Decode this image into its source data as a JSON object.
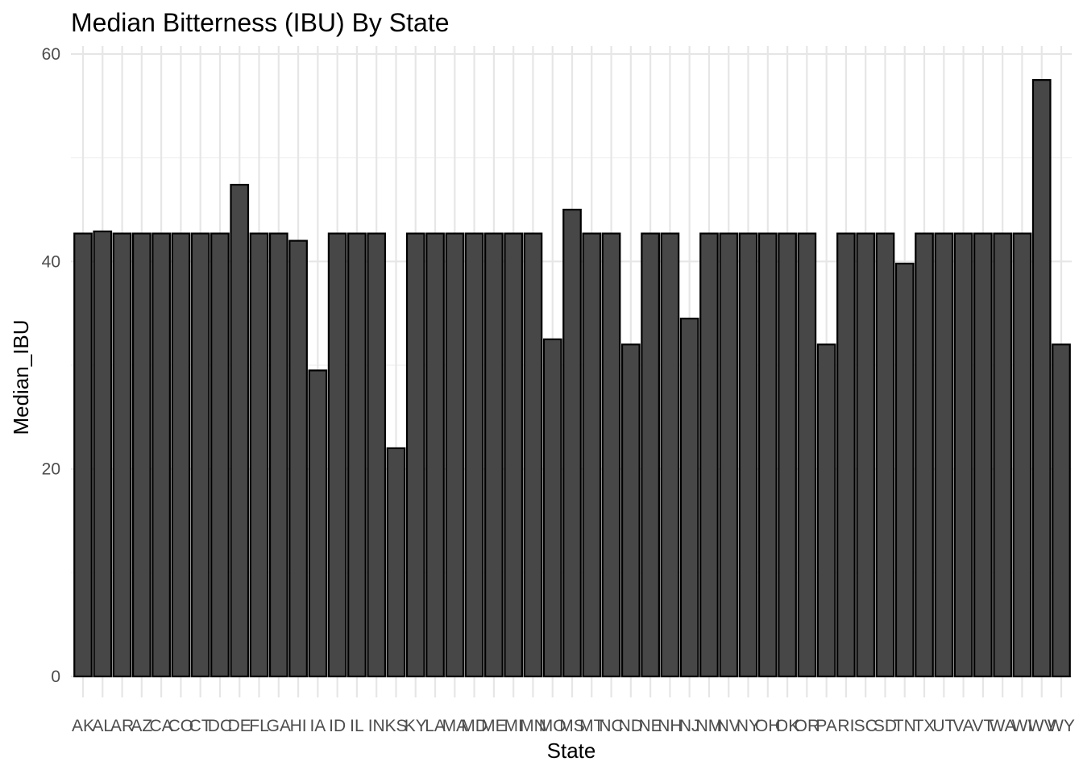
{
  "chart_data": {
    "type": "bar",
    "title": "Median Bitterness (IBU) By State",
    "xlabel": "State",
    "ylabel": "Median_IBU",
    "ylim": [
      0,
      60
    ],
    "yticks": [
      0,
      20,
      40,
      60
    ],
    "grid": true,
    "legend": "none",
    "colors": {
      "bar_fill": "#474747",
      "bar_stroke": "#000000",
      "grid": "#e6e6e6"
    },
    "categories": [
      "AK",
      "AL",
      "AR",
      "AZ",
      "CA",
      "CO",
      "CT",
      "DC",
      "DE",
      "FL",
      "GA",
      "HI",
      "IA",
      "ID",
      "IL",
      "IN",
      "KS",
      "KY",
      "LA",
      "MA",
      "MD",
      "ME",
      "MI",
      "MN",
      "MO",
      "MS",
      "MT",
      "NC",
      "ND",
      "NE",
      "NH",
      "NJ",
      "NM",
      "NV",
      "NY",
      "OH",
      "OK",
      "OR",
      "PA",
      "RI",
      "SC",
      "SD",
      "TN",
      "TX",
      "UT",
      "VA",
      "VT",
      "WA",
      "WI",
      "WV",
      "WY"
    ],
    "values": [
      42.7,
      42.9,
      42.7,
      42.7,
      42.7,
      42.7,
      42.7,
      42.7,
      47.4,
      42.7,
      42.7,
      42.0,
      29.5,
      42.7,
      42.7,
      42.7,
      22.0,
      42.7,
      42.7,
      42.7,
      42.7,
      42.7,
      42.7,
      42.7,
      32.5,
      45.0,
      42.7,
      42.7,
      32.0,
      42.7,
      42.7,
      34.5,
      42.7,
      42.7,
      42.7,
      42.7,
      42.7,
      42.7,
      32.0,
      42.7,
      42.7,
      42.7,
      39.8,
      42.7,
      42.7,
      42.7,
      42.7,
      42.7,
      42.7,
      57.5,
      32.0
    ]
  }
}
